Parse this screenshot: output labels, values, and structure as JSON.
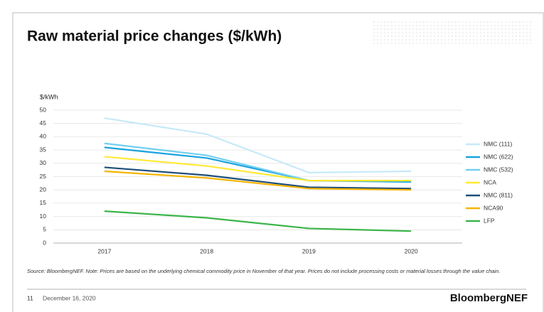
{
  "chart_data": {
    "type": "line",
    "title": "Raw material price changes ($/kWh)",
    "y_label": "$/kWh",
    "categories": [
      "2017",
      "2018",
      "2019",
      "2020"
    ],
    "ylim": [
      0,
      50
    ],
    "yticks": [
      0,
      5,
      10,
      15,
      20,
      25,
      30,
      35,
      40,
      45,
      50
    ],
    "grid": true,
    "legend": "right",
    "series": [
      {
        "name": "NMC (111)",
        "color": "#c6e9f8",
        "values": [
          47,
          41,
          26.5,
          27
        ]
      },
      {
        "name": "NMC (622)",
        "color": "#1aa3e0",
        "values": [
          36,
          32,
          23.5,
          23
        ]
      },
      {
        "name": "NMC (532)",
        "color": "#72cff0",
        "values": [
          37.5,
          33,
          23.5,
          23.5
        ]
      },
      {
        "name": "NCA",
        "color": "#ffe933",
        "values": [
          32.5,
          29,
          23.5,
          23.5
        ]
      },
      {
        "name": "NMC (811)",
        "color": "#1f4e79",
        "values": [
          28.5,
          25.5,
          21,
          20.5
        ]
      },
      {
        "name": "NCA90",
        "color": "#f5b400",
        "values": [
          27,
          24.5,
          20.5,
          20
        ]
      },
      {
        "name": "LFP",
        "color": "#3cb54a",
        "values": [
          12,
          9.5,
          5.5,
          4.5
        ]
      }
    ],
    "source": "Source: BloombergNEF. Note: Prices are based on the underlying chemical commodity price in November of that year. Prices do not include processing costs or material losses through the value chain.",
    "footer": {
      "page": "11",
      "date": "December 16, 2020",
      "brand": "BloombergNEF"
    }
  }
}
